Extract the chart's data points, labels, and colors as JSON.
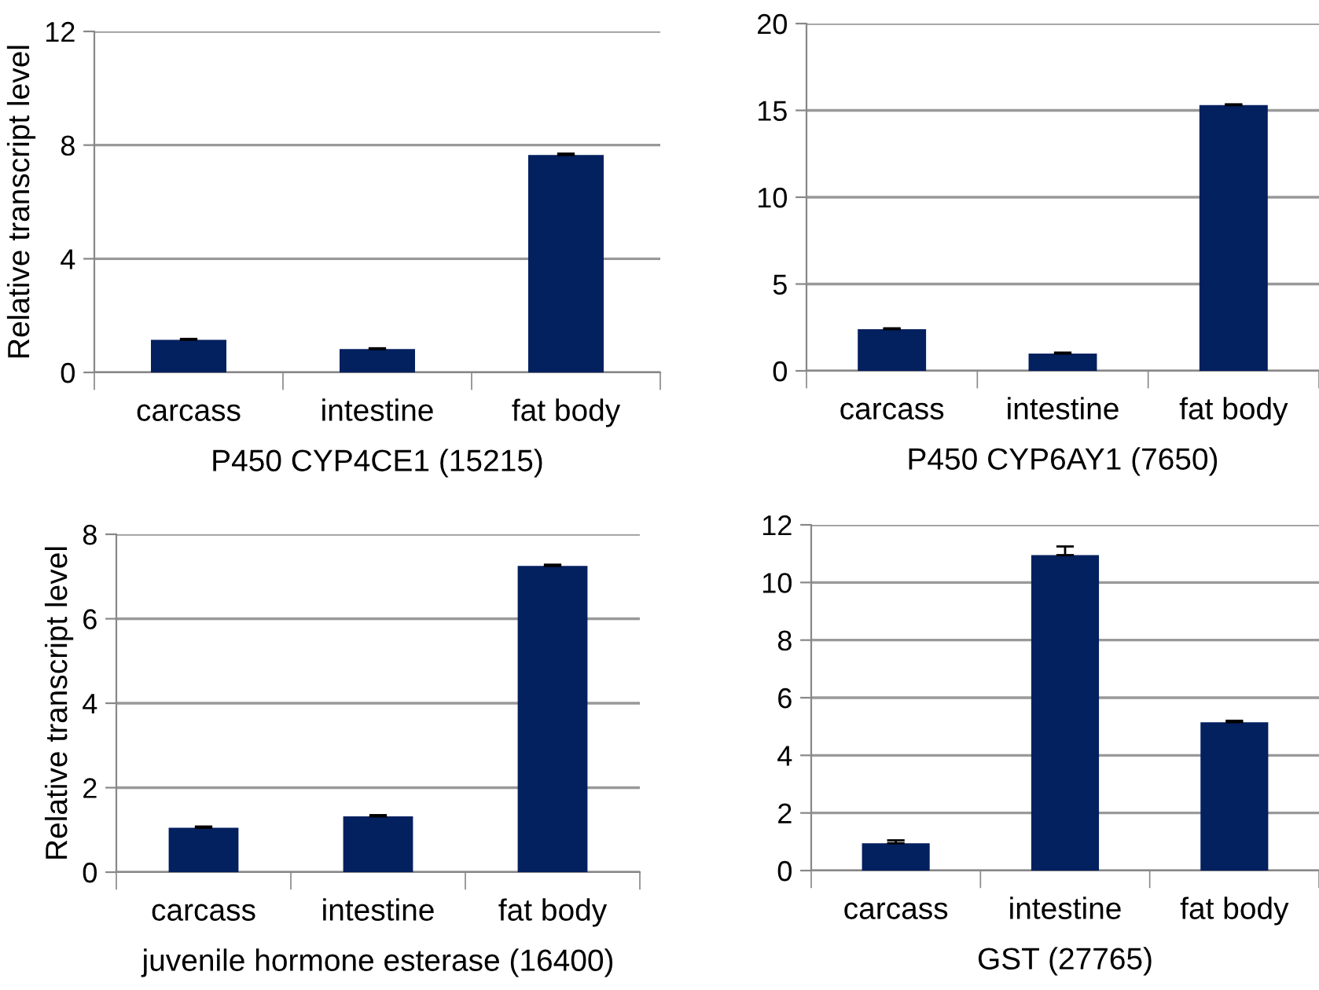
{
  "chart_data": [
    {
      "type": "bar",
      "categories": [
        "carcass",
        "intestine",
        "fat body"
      ],
      "values": [
        1.15,
        0.82,
        7.65
      ],
      "errors": [
        0.03,
        0.03,
        0.05
      ],
      "color": "#03205f",
      "xlabel": "P450 CYP4CE1 (15215)",
      "ylabel": "Relative transcript level",
      "ylim": [
        0,
        12
      ],
      "yticks": [
        0,
        4,
        8,
        12
      ],
      "grid": "y"
    },
    {
      "type": "bar",
      "categories": [
        "carcass",
        "intestine",
        "fat body"
      ],
      "values": [
        2.4,
        1.0,
        15.3
      ],
      "errors": [
        0.05,
        0.05,
        0.05
      ],
      "color": "#03205f",
      "xlabel": "P450 CYP6AY1 (7650)",
      "ylim": [
        0,
        20
      ],
      "yticks": [
        0,
        5,
        10,
        15,
        20
      ],
      "grid": "y"
    },
    {
      "type": "bar",
      "categories": [
        "carcass",
        "intestine",
        "fat body"
      ],
      "values": [
        1.05,
        1.32,
        7.25
      ],
      "errors": [
        0.03,
        0.03,
        0.03
      ],
      "color": "#03205f",
      "xlabel": "juvenile hormone esterase (16400)",
      "ylabel": "Relative transcript level",
      "ylim": [
        0,
        8
      ],
      "yticks": [
        0,
        2,
        4,
        6,
        8
      ],
      "grid": "y"
    },
    {
      "type": "bar",
      "categories": [
        "carcass",
        "intestine",
        "fat body"
      ],
      "values": [
        0.95,
        10.95,
        5.15
      ],
      "errors": [
        0.1,
        0.3,
        0.05
      ],
      "color": "#03205f",
      "xlabel": "GST (27765)",
      "ylim": [
        0,
        12
      ],
      "yticks": [
        0,
        2,
        4,
        6,
        8,
        10,
        12
      ],
      "grid": "y"
    }
  ]
}
